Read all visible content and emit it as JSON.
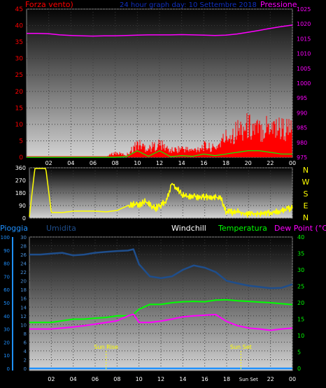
{
  "panel1": {
    "title": "24 hour graph day: 10 Settembre 2018",
    "left_title": "Forza vento)",
    "right_title": "Pressione",
    "left_ticks": [
      "0",
      "5",
      "10",
      "15",
      "20",
      "25",
      "30",
      "35",
      "40",
      "45"
    ],
    "right_ticks": [
      "975",
      "980",
      "985",
      "990",
      "995",
      "1000",
      "1005",
      "1010",
      "1015",
      "1020",
      "1025"
    ]
  },
  "panel2": {
    "left_ticks": [
      "0",
      "90",
      "180",
      "270",
      "360"
    ],
    "right_letters": [
      "N",
      "W",
      "S",
      "E",
      "N"
    ]
  },
  "panel3": {
    "label_pioggia": "Pioggia",
    "label_umidita": "Umidita",
    "label_windchill": "Windchill",
    "label_temperatura": "Temperatura",
    "label_dewpoint": "Dew Point (°C)",
    "pioggia_ticks": [
      "0",
      "10",
      "20",
      "30",
      "40",
      "50",
      "60",
      "70",
      "80",
      "90",
      "100"
    ],
    "umidita_ticks": [
      "0",
      "2",
      "4",
      "6",
      "8",
      "10",
      "12",
      "14",
      "16",
      "18",
      "20",
      "22",
      "24",
      "26",
      "28",
      "30"
    ],
    "temp_ticks": [
      "0",
      "5",
      "10",
      "15",
      "20",
      "25",
      "30",
      "35",
      "40"
    ],
    "sun_rise": "Sun Rise",
    "sun_set": "Sun Set"
  },
  "x_ticks": [
    "02",
    "04",
    "06",
    "08",
    "10",
    "12",
    "14",
    "16",
    "18",
    "20",
    "22",
    "00"
  ],
  "x_ticks_panel3": [
    "02",
    "04",
    "06",
    "08",
    "10",
    "12",
    "14",
    "16",
    "18",
    "Sun Set",
    "22",
    "00"
  ],
  "colors": {
    "pressure": "#ff00ff",
    "gust": "#ff0000",
    "wind": "#00ff00",
    "direction": "#ffff00",
    "humidity": "#1f4e8c",
    "temperature": "#00ff00",
    "dewpoint": "#ff00ff",
    "rain": "#1e90ff"
  },
  "chart_data": [
    {
      "type": "line",
      "x": [
        0,
        1,
        2,
        3,
        4,
        5,
        6,
        7,
        8,
        9,
        10,
        11,
        12,
        13,
        14,
        15,
        16,
        17,
        18,
        19,
        20,
        21,
        22,
        23,
        24
      ],
      "series": [
        {
          "name": "Forza vento)",
          "axis": "left",
          "values": [
            0,
            0,
            0,
            0,
            0,
            0,
            0,
            0,
            0,
            0.2,
            2,
            0.3,
            2,
            0.2,
            0.5,
            0.3,
            1,
            0.5,
            1,
            1.5,
            2,
            2,
            1.5,
            1,
            1
          ]
        },
        {
          "name": "Pressione",
          "axis": "right",
          "values": [
            1016.8,
            1016.8,
            1016.7,
            1016.3,
            1016.1,
            1016,
            1015.9,
            1016,
            1016,
            1016.1,
            1016.2,
            1016.3,
            1016.3,
            1016.3,
            1016.4,
            1016.3,
            1016.2,
            1016.1,
            1016.2,
            1016.6,
            1017.2,
            1017.8,
            1018.5,
            1019.1,
            1019.6
          ]
        }
      ],
      "gust_values": [
        0,
        0,
        0,
        0,
        0,
        0,
        0,
        0,
        2,
        1,
        6,
        4,
        6,
        3,
        4,
        3,
        5,
        4,
        9,
        12,
        14,
        12,
        15,
        13,
        12
      ],
      "xlim": [
        0,
        24
      ],
      "ylim_left": [
        0,
        45
      ],
      "ylim_right": [
        975,
        1025
      ]
    },
    {
      "type": "line",
      "x": [
        0,
        0.5,
        1,
        1.5,
        2,
        3,
        4,
        5,
        6,
        7,
        8,
        9,
        9.5,
        10,
        10.5,
        11,
        11.5,
        12,
        12.5,
        13,
        14,
        15,
        16,
        17,
        17.5,
        18,
        19,
        20,
        21,
        22,
        23,
        24
      ],
      "series": [
        {
          "name": "N W S E N",
          "values": [
            10,
            355,
            355,
            355,
            40,
            40,
            50,
            50,
            50,
            45,
            55,
            90,
            100,
            95,
            120,
            100,
            70,
            95,
            125,
            250,
            160,
            155,
            150,
            150,
            140,
            40,
            45,
            30,
            35,
            40,
            50,
            70
          ]
        }
      ],
      "xlim": [
        0,
        24
      ],
      "ylim": [
        0,
        360
      ]
    },
    {
      "type": "line",
      "x": [
        0,
        1,
        2,
        3,
        4,
        5,
        6,
        7,
        8,
        9,
        9.5,
        10,
        11,
        12,
        13,
        14,
        15,
        16,
        17,
        18,
        19,
        20,
        21,
        22,
        23,
        24
      ],
      "series": [
        {
          "name": "Umidita",
          "axis": "umidita",
          "values": [
            26,
            26,
            26.2,
            26.4,
            25.8,
            26,
            26.4,
            26.6,
            26.8,
            26.9,
            27.2,
            23.8,
            21,
            20.6,
            21,
            22.5,
            23.5,
            23,
            22,
            20,
            19.4,
            18.9,
            18.6,
            18.3,
            18.4,
            19.2
          ]
        },
        {
          "name": "Temperatura",
          "axis": "temp",
          "values": [
            14,
            14,
            14,
            14.5,
            15,
            15,
            15.3,
            15.5,
            16,
            16,
            16.5,
            18,
            19.5,
            19.5,
            20,
            20.3,
            20.4,
            20.3,
            20.8,
            20.9,
            20.6,
            20.4,
            20.2,
            20,
            19.7,
            19.4
          ]
        },
        {
          "name": "Dew Point (°C)",
          "axis": "temp",
          "values": [
            12,
            12,
            12,
            12.3,
            12.6,
            13,
            13.5,
            14,
            14.5,
            16,
            16.5,
            14,
            14,
            14.4,
            15,
            15.7,
            16,
            16.2,
            16.4,
            14.3,
            13,
            12.3,
            12,
            11.6,
            12,
            12.3
          ]
        },
        {
          "name": "Pioggia",
          "axis": "pioggia",
          "values": [
            0,
            0,
            0,
            0,
            0,
            0,
            0,
            0,
            0,
            0,
            0,
            0,
            0,
            0,
            0,
            0,
            0,
            0,
            0,
            0,
            0,
            0,
            0,
            0,
            0,
            0
          ]
        }
      ],
      "xlim": [
        0,
        24
      ],
      "ylim_pioggia": [
        0,
        100
      ],
      "ylim_umidita": [
        0,
        30
      ],
      "ylim_temp": [
        0,
        40
      ],
      "annotations": [
        {
          "text": "Sun Rise",
          "x": 7
        },
        {
          "text": "Sun Set",
          "x": 19.3
        }
      ]
    }
  ]
}
